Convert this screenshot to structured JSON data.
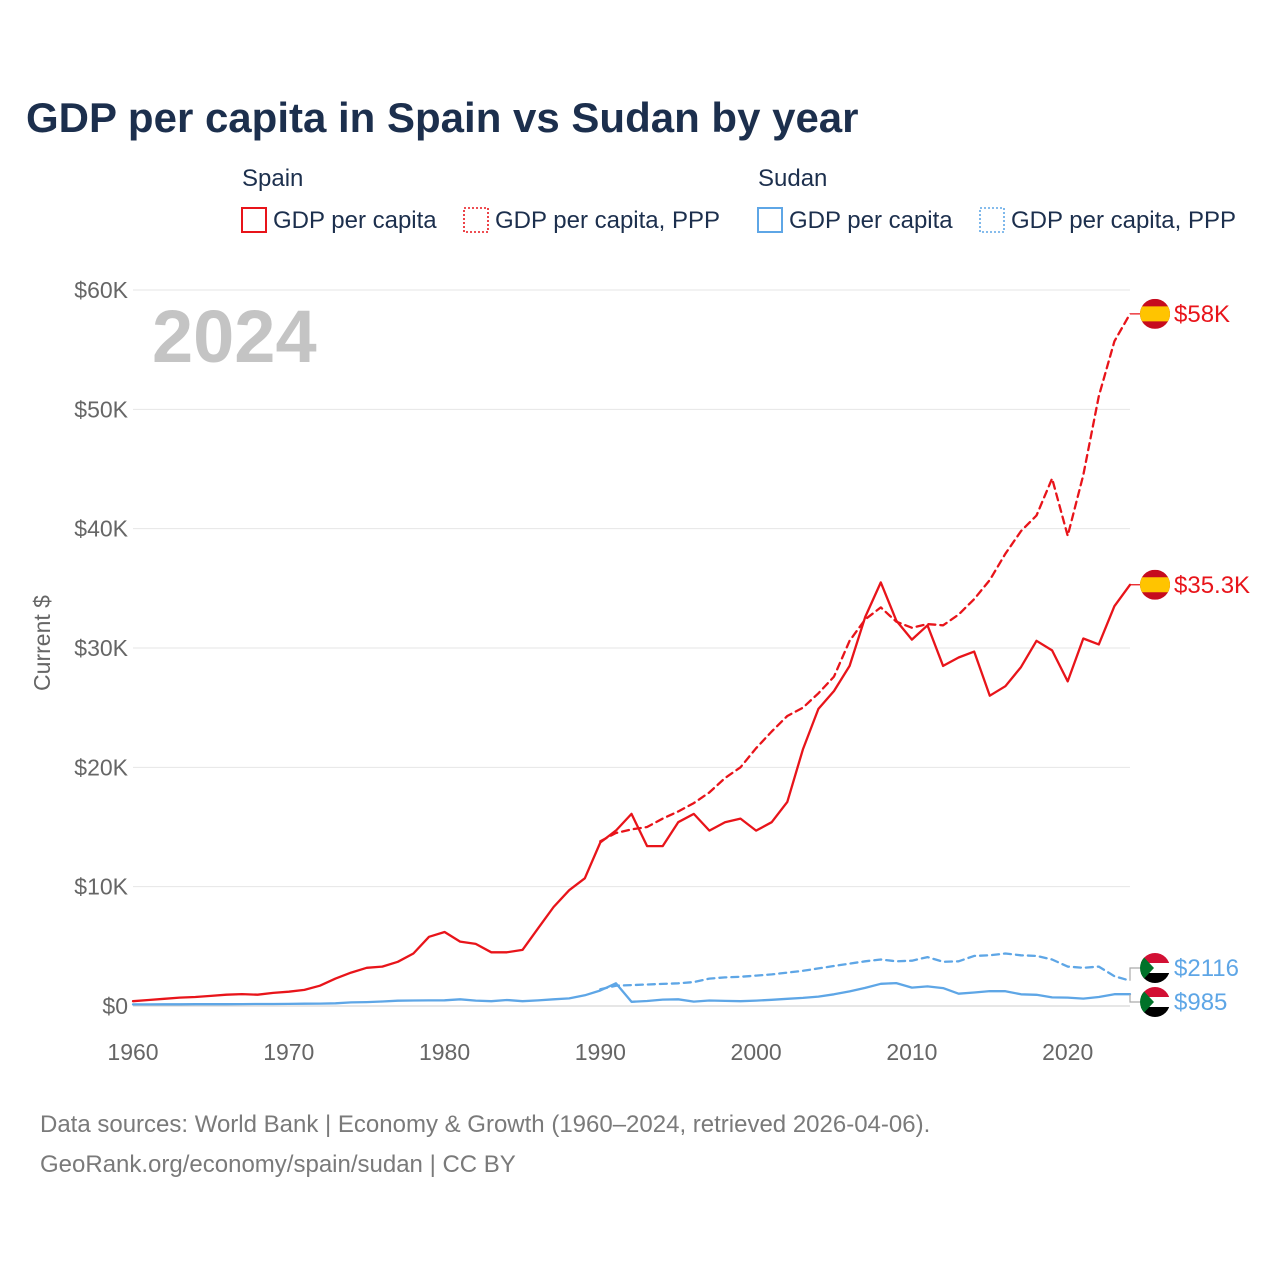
{
  "page": {
    "title": "GDP per capita in Spain vs Sudan by year",
    "year_watermark": "2024",
    "source_line1": "Data sources: World Bank | Economy & Growth (1960–2024, retrieved 2026-04-06).",
    "source_line2": "GeoRank.org/economy/spain/sudan | CC BY"
  },
  "legend": {
    "groups": [
      {
        "country": "Spain",
        "color": "#e8141a",
        "items": [
          "GDP per capita",
          "GDP per capita, PPP"
        ]
      },
      {
        "country": "Sudan",
        "color": "#5ea6e6",
        "items": [
          "GDP per capita",
          "GDP per capita, PPP"
        ]
      }
    ]
  },
  "colors": {
    "spain": "#e8141a",
    "sudan": "#5ea6e6"
  },
  "chart_data": {
    "type": "line",
    "title": "GDP per capita in Spain vs Sudan by year",
    "xlabel": "",
    "ylabel": "Current $",
    "xlim": [
      1960,
      2024
    ],
    "ylim": [
      0,
      60000
    ],
    "x_ticks": [
      1960,
      1970,
      1980,
      1990,
      2000,
      2010,
      2020
    ],
    "x_tick_labels": [
      "1960",
      "1970",
      "1980",
      "1990",
      "2000",
      "2010",
      "2020"
    ],
    "y_ticks": [
      0,
      10000,
      20000,
      30000,
      40000,
      50000,
      60000
    ],
    "y_tick_labels": [
      "$0",
      "$10K",
      "$20K",
      "$30K",
      "$40K",
      "$50K",
      "$60K"
    ],
    "grid": true,
    "end_labels": [
      {
        "series": "Spain GDP per capita, PPP",
        "label": "$58K",
        "country": "Spain"
      },
      {
        "series": "Spain GDP per capita",
        "label": "$35.3K",
        "country": "Spain"
      },
      {
        "series": "Sudan GDP per capita, PPP",
        "label": "$2116",
        "country": "Sudan"
      },
      {
        "series": "Sudan GDP per capita",
        "label": "$985",
        "country": "Sudan"
      }
    ],
    "series": [
      {
        "name": "Spain GDP per capita",
        "country": "Spain",
        "style": "solid",
        "x": [
          1960,
          1961,
          1962,
          1963,
          1964,
          1965,
          1966,
          1967,
          1968,
          1969,
          1970,
          1971,
          1972,
          1973,
          1974,
          1975,
          1976,
          1977,
          1978,
          1979,
          1980,
          1981,
          1982,
          1983,
          1984,
          1985,
          1986,
          1987,
          1988,
          1989,
          1990,
          1991,
          1992,
          1993,
          1994,
          1995,
          1996,
          1997,
          1998,
          1999,
          2000,
          2001,
          2002,
          2003,
          2004,
          2005,
          2006,
          2007,
          2008,
          2009,
          2010,
          2011,
          2012,
          2013,
          2014,
          2015,
          2016,
          2017,
          2018,
          2019,
          2020,
          2021,
          2022,
          2023,
          2024
        ],
        "values": [
          400,
          500,
          600,
          700,
          750,
          850,
          950,
          1000,
          950,
          1100,
          1200,
          1350,
          1700,
          2300,
          2800,
          3200,
          3300,
          3700,
          4400,
          5800,
          6200,
          5400,
          5200,
          4500,
          4500,
          4700,
          6500,
          8300,
          9700,
          10700,
          13700,
          14700,
          16100,
          13400,
          13400,
          15400,
          16100,
          14700,
          15400,
          15700,
          14700,
          15400,
          17100,
          21500,
          24900,
          26400,
          28500,
          32600,
          35500,
          32300,
          30700,
          31900,
          28500,
          29200,
          29700,
          26000,
          26800,
          28400,
          30600,
          29800,
          27200,
          30800,
          30300,
          33500,
          35300
        ]
      },
      {
        "name": "Spain GDP per capita, PPP",
        "country": "Spain",
        "style": "dashed",
        "x": [
          1990,
          1991,
          1992,
          1993,
          1994,
          1995,
          1996,
          1997,
          1998,
          1999,
          2000,
          2001,
          2002,
          2003,
          2004,
          2005,
          2006,
          2007,
          2008,
          2009,
          2010,
          2011,
          2012,
          2013,
          2014,
          2015,
          2016,
          2017,
          2018,
          2019,
          2020,
          2021,
          2022,
          2023,
          2024
        ],
        "values": [
          13800,
          14500,
          14800,
          15000,
          15700,
          16300,
          17000,
          17900,
          19100,
          20000,
          21600,
          23000,
          24300,
          25000,
          26200,
          27600,
          30600,
          32400,
          33400,
          32200,
          31700,
          32000,
          31900,
          32800,
          34100,
          35700,
          37900,
          39800,
          41100,
          44200,
          39400,
          44500,
          51100,
          55700,
          58000
        ]
      },
      {
        "name": "Sudan GDP per capita",
        "country": "Sudan",
        "style": "solid",
        "x": [
          1960,
          1961,
          1962,
          1963,
          1964,
          1965,
          1966,
          1967,
          1968,
          1969,
          1970,
          1971,
          1972,
          1973,
          1974,
          1975,
          1976,
          1977,
          1978,
          1979,
          1980,
          1981,
          1982,
          1983,
          1984,
          1985,
          1986,
          1987,
          1988,
          1989,
          1990,
          1991,
          1992,
          1993,
          1994,
          1995,
          1996,
          1997,
          1998,
          1999,
          2000,
          2001,
          2002,
          2003,
          2004,
          2005,
          2006,
          2007,
          2008,
          2009,
          2010,
          2011,
          2012,
          2013,
          2014,
          2015,
          2016,
          2017,
          2018,
          2019,
          2020,
          2021,
          2022,
          2023,
          2024
        ],
        "values": [
          130,
          135,
          140,
          145,
          150,
          150,
          155,
          160,
          165,
          170,
          180,
          190,
          200,
          230,
          300,
          330,
          380,
          440,
          460,
          470,
          480,
          560,
          450,
          400,
          500,
          400,
          470,
          560,
          640,
          900,
          1300,
          1900,
          350,
          420,
          540,
          560,
          370,
          460,
          430,
          400,
          450,
          520,
          600,
          680,
          790,
          980,
          1220,
          1520,
          1860,
          1920,
          1540,
          1640,
          1500,
          1030,
          1130,
          1250,
          1240,
          980,
          940,
          720,
          700,
          620,
          750,
          990,
          985
        ]
      },
      {
        "name": "Sudan GDP per capita, PPP",
        "country": "Sudan",
        "style": "dashed",
        "x": [
          1990,
          1991,
          1992,
          1993,
          1994,
          1995,
          1996,
          1997,
          1998,
          1999,
          2000,
          2001,
          2002,
          2003,
          2004,
          2005,
          2006,
          2007,
          2008,
          2009,
          2010,
          2011,
          2012,
          2013,
          2014,
          2015,
          2016,
          2017,
          2018,
          2019,
          2020,
          2021,
          2022,
          2023,
          2024
        ],
        "values": [
          1400,
          1700,
          1750,
          1800,
          1850,
          1900,
          2000,
          2300,
          2400,
          2450,
          2550,
          2650,
          2800,
          2950,
          3150,
          3350,
          3550,
          3750,
          3900,
          3750,
          3800,
          4100,
          3700,
          3750,
          4200,
          4250,
          4400,
          4250,
          4200,
          3900,
          3300,
          3200,
          3300,
          2500,
          2116
        ]
      }
    ]
  }
}
